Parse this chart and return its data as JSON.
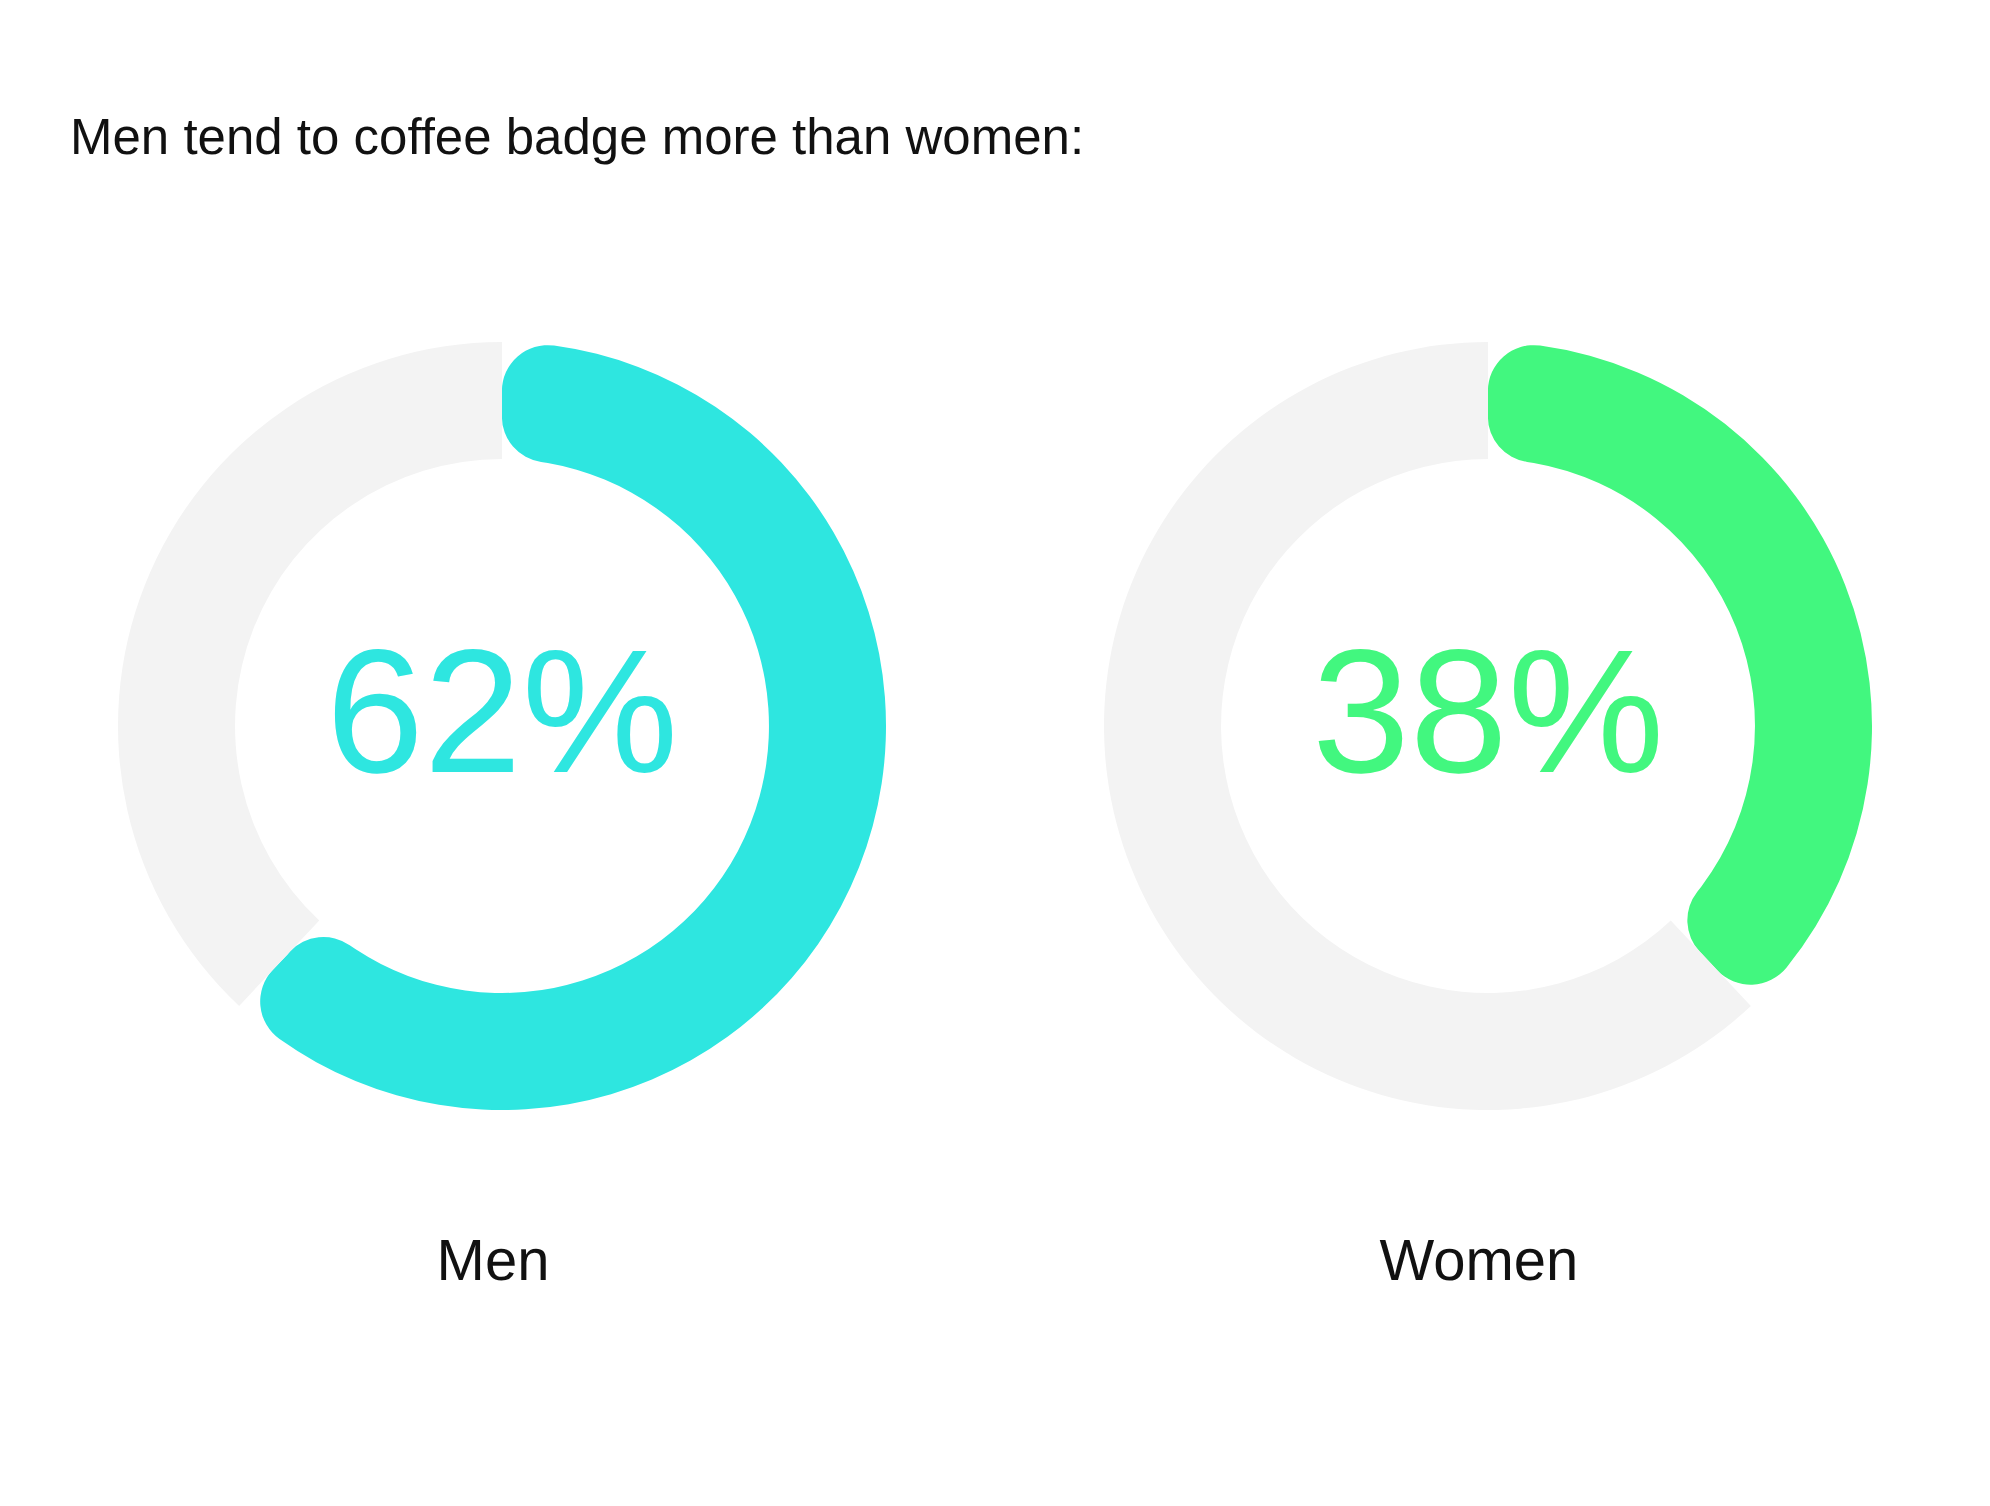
{
  "chart_data": [
    {
      "type": "donut",
      "title": "Men tend to coffee badge more than women:",
      "xlabel": "Men",
      "categories": [
        null,
        null
      ],
      "values": [
        62,
        38
      ],
      "colors": [
        "#2ee6e0",
        "#f3f3f3"
      ],
      "value_labels": [
        "62%",
        null
      ]
    },
    {
      "type": "donut",
      "xlabel": "Women",
      "categories": [
        null,
        null
      ],
      "values": [
        38,
        62
      ],
      "colors": [
        "#42f77f",
        "#f3f3f3"
      ],
      "value_labels": [
        "38%",
        null
      ]
    }
  ]
}
